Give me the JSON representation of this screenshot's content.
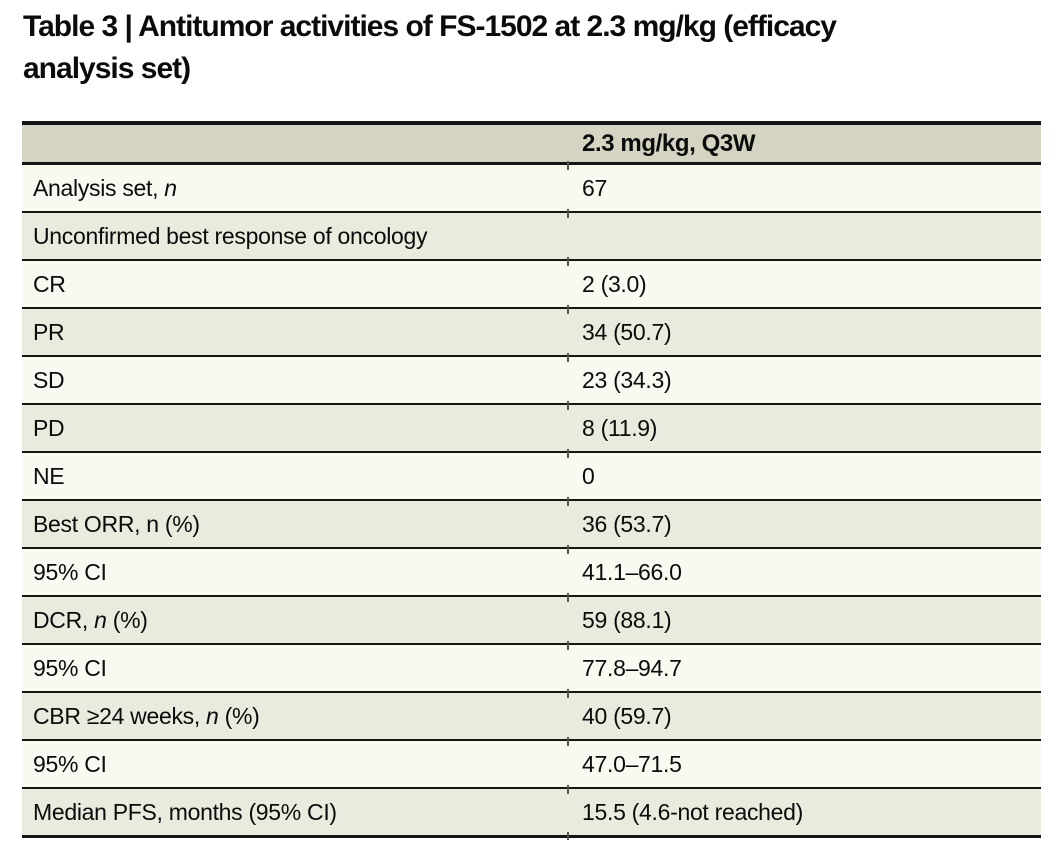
{
  "title": {
    "line1": "Table 3 | Antitumor activities of FS-1502 at 2.3 mg/kg (efficacy",
    "line2": "analysis set)"
  },
  "table": {
    "header": {
      "value_col": "2.3 mg/kg, Q3W"
    },
    "rows": [
      {
        "pre": "Analysis set, ",
        "it": "n",
        "post": "",
        "value": "67"
      },
      {
        "pre": "Unconfirmed best response of oncology",
        "it": "",
        "post": "",
        "value": ""
      },
      {
        "pre": "CR",
        "it": "",
        "post": "",
        "value": "2 (3.0)"
      },
      {
        "pre": "PR",
        "it": "",
        "post": "",
        "value": "34 (50.7)"
      },
      {
        "pre": "SD",
        "it": "",
        "post": "",
        "value": "23 (34.3)"
      },
      {
        "pre": "PD",
        "it": "",
        "post": "",
        "value": "8 (11.9)"
      },
      {
        "pre": "NE",
        "it": "",
        "post": "",
        "value": "0"
      },
      {
        "pre": "Best ORR, n (%)",
        "it": "",
        "post": "",
        "value": "36 (53.7)"
      },
      {
        "pre": "95% CI",
        "it": "",
        "post": "",
        "value": "41.1–66.0"
      },
      {
        "pre": "DCR, ",
        "it": "n",
        "post": " (%)",
        "value": "59 (88.1)"
      },
      {
        "pre": "95% CI",
        "it": "",
        "post": "",
        "value": "77.8–94.7"
      },
      {
        "pre": "CBR ≥24 weeks, ",
        "it": "n",
        "post": " (%)",
        "value": "40 (59.7)"
      },
      {
        "pre": "95% CI",
        "it": "",
        "post": "",
        "value": "47.0–71.5"
      },
      {
        "pre": "Median PFS, months (95% CI)",
        "it": "",
        "post": "",
        "value": "15.5 (4.6-not reached)"
      }
    ]
  },
  "colors": {
    "header_bg": "#d5d3c2",
    "row_beige": "#eaeade",
    "row_light": "#faf9f1",
    "rule": "#141414",
    "tick": "#55544d",
    "text": "#0b0b0b"
  }
}
